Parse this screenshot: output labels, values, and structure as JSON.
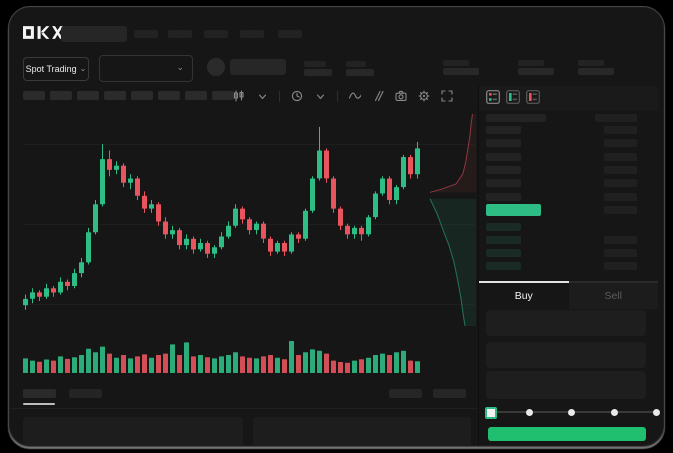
{
  "header": {
    "brand": "OKX"
  },
  "ticker": {
    "market_selector": "Spot Trading",
    "caret": "⌄"
  },
  "toolbar": {
    "icons": [
      "candle-type",
      "caret-down",
      "divider",
      "interval-clock",
      "caret-down",
      "divider",
      "indicator-wave",
      "compare",
      "camera",
      "settings-gear",
      "fullscreen"
    ]
  },
  "orderbook": {
    "view_icons": [
      "book-combined",
      "book-bids-only",
      "book-asks-only"
    ],
    "skeleton": {
      "ask_rows": 6,
      "bid_rows": 4
    }
  },
  "trade_panel": {
    "buy_tab": "Buy",
    "sell_tab": "Sell"
  },
  "colors": {
    "up": "#2EBD85",
    "down": "#E8555E",
    "buy_button": "#20BF6F",
    "mid_price": "#2EBD85"
  },
  "skeleton": {
    "nav_bars": 5,
    "toolbar_bars": 8,
    "form_rows": 3,
    "slider_dots": 5,
    "bottom_tabs": 2,
    "bottom_right_bars": 2,
    "bottom_panels": 2
  },
  "chart_data": {
    "type": "candlestick",
    "title": "",
    "price_scale": [
      0,
      100
    ],
    "grid_values": [
      86,
      49,
      12
    ],
    "candles": [
      [
        11,
        16,
        9,
        14
      ],
      [
        14,
        19,
        12,
        17
      ],
      [
        17,
        18,
        13,
        15
      ],
      [
        15,
        21,
        14,
        19
      ],
      [
        19,
        20,
        15,
        17
      ],
      [
        17,
        24,
        16,
        22
      ],
      [
        22,
        23,
        18,
        20
      ],
      [
        20,
        28,
        19,
        26
      ],
      [
        26,
        33,
        24,
        31
      ],
      [
        31,
        47,
        30,
        45
      ],
      [
        45,
        60,
        44,
        58
      ],
      [
        58,
        86,
        57,
        79
      ],
      [
        79,
        83,
        71,
        74
      ],
      [
        74,
        78,
        72,
        76
      ],
      [
        76,
        77,
        66,
        68
      ],
      [
        68,
        72,
        65,
        70
      ],
      [
        70,
        71,
        60,
        62
      ],
      [
        62,
        64,
        54,
        56
      ],
      [
        56,
        60,
        54,
        58
      ],
      [
        58,
        59,
        48,
        50
      ],
      [
        50,
        52,
        42,
        44
      ],
      [
        44,
        48,
        42,
        46
      ],
      [
        46,
        47,
        37,
        39
      ],
      [
        39,
        44,
        37,
        42
      ],
      [
        42,
        43,
        35,
        37
      ],
      [
        37,
        42,
        36,
        40
      ],
      [
        40,
        41,
        33,
        35
      ],
      [
        35,
        39,
        33,
        38
      ],
      [
        38,
        45,
        37,
        43
      ],
      [
        43,
        50,
        42,
        48
      ],
      [
        48,
        58,
        47,
        56
      ],
      [
        56,
        57,
        49,
        51
      ],
      [
        51,
        52,
        44,
        46
      ],
      [
        46,
        50,
        44,
        49
      ],
      [
        49,
        50,
        40,
        42
      ],
      [
        42,
        43,
        34,
        36
      ],
      [
        36,
        41,
        35,
        40
      ],
      [
        40,
        41,
        34,
        36
      ],
      [
        36,
        45,
        35,
        44
      ],
      [
        44,
        45,
        40,
        42
      ],
      [
        42,
        56,
        41,
        55
      ],
      [
        55,
        71,
        54,
        70
      ],
      [
        70,
        94,
        69,
        83
      ],
      [
        83,
        84,
        68,
        70
      ],
      [
        70,
        71,
        54,
        56
      ],
      [
        56,
        57,
        46,
        48
      ],
      [
        48,
        49,
        42,
        44
      ],
      [
        44,
        48,
        42,
        47
      ],
      [
        47,
        48,
        41,
        44
      ],
      [
        44,
        53,
        43,
        52
      ],
      [
        52,
        64,
        51,
        63
      ],
      [
        63,
        71,
        62,
        70
      ],
      [
        70,
        71,
        58,
        60
      ],
      [
        60,
        67,
        58,
        66
      ],
      [
        66,
        81,
        65,
        80
      ],
      [
        80,
        81,
        70,
        72
      ],
      [
        72,
        87,
        70,
        84
      ]
    ],
    "volume": [
      0.38,
      0.3,
      0.26,
      0.34,
      0.3,
      0.45,
      0.36,
      0.42,
      0.5,
      0.72,
      0.6,
      0.8,
      0.55,
      0.4,
      0.5,
      0.38,
      0.45,
      0.52,
      0.4,
      0.5,
      0.55,
      0.88,
      0.5,
      0.95,
      0.45,
      0.5,
      0.42,
      0.38,
      0.45,
      0.5,
      0.6,
      0.45,
      0.4,
      0.38,
      0.45,
      0.5,
      0.4,
      0.35,
      1.0,
      0.5,
      0.6,
      0.7,
      0.65,
      0.55,
      0.3,
      0.25,
      0.22,
      0.3,
      0.35,
      0.4,
      0.5,
      0.55,
      0.5,
      0.6,
      0.65,
      0.3,
      0.28
    ],
    "depth_overlay": {
      "asks": [
        [
          0.93,
          0.0
        ],
        [
          0.9,
          0.05
        ],
        [
          0.88,
          0.1
        ],
        [
          0.84,
          0.16
        ],
        [
          0.8,
          0.22
        ],
        [
          0.74,
          0.28
        ],
        [
          0.6,
          0.33
        ],
        [
          0.3,
          0.355
        ],
        [
          0.08,
          0.37
        ]
      ],
      "bids": [
        [
          0.08,
          0.4
        ],
        [
          0.22,
          0.47
        ],
        [
          0.33,
          0.54
        ],
        [
          0.46,
          0.62
        ],
        [
          0.56,
          0.7
        ],
        [
          0.63,
          0.78
        ],
        [
          0.7,
          0.87
        ],
        [
          0.74,
          0.94
        ],
        [
          0.78,
          1.0
        ]
      ]
    }
  }
}
